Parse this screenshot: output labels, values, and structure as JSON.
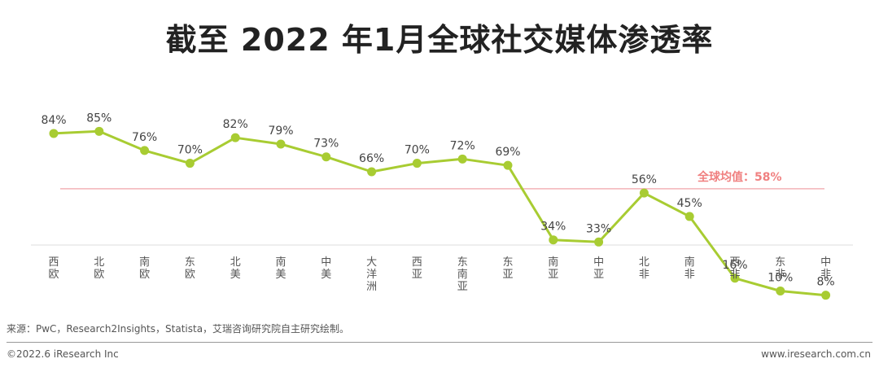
{
  "title": "截至 2022 年1月全球社交媒体渗透率",
  "source": "来源：PwC，Research2Insights，Statista，艾瑞咨询研究院自主研究绘制。",
  "copyright": "©2022.6 iResearch Inc",
  "website": "www.iresearch.com.cn",
  "colors": {
    "line": "#a8cc32",
    "average_line": "#f2b3b8",
    "average_label": "#f08080",
    "axis": "#dddddd"
  },
  "chart_data": {
    "type": "line",
    "title": "截至 2022 年1月全球社交媒体渗透率",
    "xlabel": "",
    "ylabel": "",
    "ylim": [
      0,
      100
    ],
    "grid": false,
    "categories": [
      "西欧",
      "北欧",
      "南欧",
      "东欧",
      "北美",
      "南美",
      "中美",
      "大洋洲",
      "西亚",
      "东南亚",
      "东亚",
      "南亚",
      "中亚",
      "北非",
      "南非",
      "西非",
      "东非",
      "中非"
    ],
    "values": [
      84,
      85,
      76,
      70,
      82,
      79,
      73,
      66,
      70,
      72,
      69,
      34,
      33,
      56,
      45,
      16,
      10,
      8
    ],
    "value_labels": [
      "84%",
      "85%",
      "76%",
      "70%",
      "82%",
      "79%",
      "73%",
      "66%",
      "70%",
      "72%",
      "69%",
      "34%",
      "33%",
      "56%",
      "45%",
      "16%",
      "10%",
      "8%"
    ],
    "reference_line": {
      "label": "全球均值：58%",
      "value": 58
    }
  }
}
